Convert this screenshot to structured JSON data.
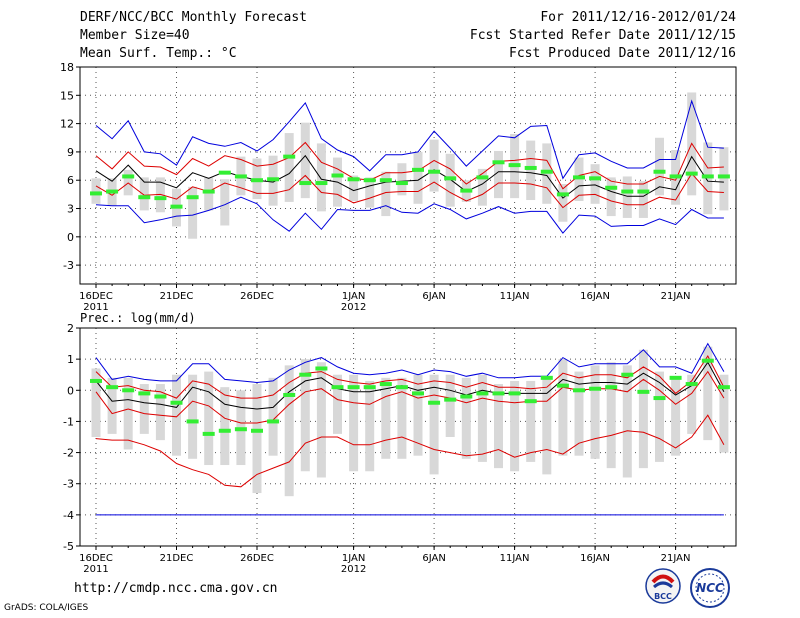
{
  "header": {
    "title": "DERF/NCC/BCC Monthly Forecast",
    "member_size": "Member Size=40",
    "variable_label": "Mean Surf. Temp.: °C",
    "forecast_period": "For 2011/12/16-2012/01/24",
    "fcst_started": "Fcst Started Refer Date 2011/12/15",
    "fcst_produced": "Fcst Produced Date 2011/12/16"
  },
  "footer": {
    "url": "http://cmdp.ncc.cma.gov.cn",
    "credit": "GrADS: COLA/IGES",
    "logo_bcc": "BCC",
    "logo_ncc": "NCC"
  },
  "colors": {
    "blue": "#0000dd",
    "red": "#dd0000",
    "black": "#000000",
    "green": "#33ee33",
    "box": "#d8d8d8",
    "grid": "#555555"
  },
  "chart_data": [
    {
      "type": "line",
      "title": "Mean Surf. Temp.: °C",
      "ylim": [
        -5,
        18
      ],
      "yticks": [
        -3,
        0,
        3,
        6,
        9,
        12,
        15,
        18
      ],
      "xtick_labels": [
        "16DEC",
        "21DEC",
        "26DEC",
        "1JAN",
        "6JAN",
        "11JAN",
        "16JAN",
        "21JAN"
      ],
      "xtick_days": [
        1,
        6,
        11,
        17,
        22,
        27,
        32,
        37
      ],
      "year_labels": [
        {
          "text": "2011",
          "day": 1
        },
        {
          "text": "2012",
          "day": 17
        }
      ],
      "days": 40,
      "series": [
        {
          "name": "max",
          "color": "blue",
          "values": [
            11.8,
            10.4,
            12.3,
            9,
            8.8,
            7.6,
            10.6,
            9.9,
            9.6,
            10,
            9.1,
            10.3,
            12.2,
            14.2,
            10.4,
            9.2,
            8.5,
            7,
            8.7,
            8.7,
            9,
            11.2,
            9.4,
            7.5,
            9.1,
            10.7,
            10.5,
            11.7,
            11.8,
            6.2,
            8.7,
            8.9,
            8,
            7.3,
            7.3,
            8.2,
            8.2,
            14.4,
            9.5,
            9.4
          ]
        },
        {
          "name": "upper",
          "color": "red",
          "values": [
            8.6,
            7.2,
            9,
            7.5,
            7.4,
            6.6,
            8.3,
            7.5,
            8.6,
            8.2,
            7.5,
            7.7,
            8.4,
            10,
            7.9,
            7.2,
            6.2,
            6,
            6.8,
            6.8,
            7,
            8.1,
            7.2,
            5.6,
            6.7,
            8,
            8.1,
            8.3,
            8.1,
            5.1,
            6.5,
            6.9,
            5.9,
            5.6,
            5.6,
            6.4,
            6,
            9.9,
            7.3,
            7.4
          ]
        },
        {
          "name": "mean",
          "color": "black",
          "values": [
            7,
            5.9,
            7.6,
            5.8,
            5.8,
            5.2,
            6.8,
            6.2,
            6.9,
            6.4,
            6,
            5.8,
            6.7,
            8.6,
            6.1,
            5.8,
            4.9,
            5.4,
            5.8,
            5.9,
            6,
            7.1,
            6.1,
            4.8,
            5.6,
            6.9,
            6.9,
            6.8,
            6.5,
            4.1,
            5.4,
            5.5,
            4.8,
            4.3,
            4.3,
            5.3,
            5,
            8.5,
            5.9,
            5.8
          ]
        },
        {
          "name": "lower",
          "color": "red",
          "values": [
            5.4,
            4.4,
            5.7,
            4.4,
            4.5,
            4,
            5.3,
            4.8,
            5.7,
            5.2,
            4.6,
            4.6,
            5,
            6.5,
            4.7,
            4.5,
            3.6,
            4.1,
            4.7,
            4.8,
            4.8,
            5.8,
            4.7,
            3.8,
            4.5,
            5.7,
            5.7,
            5.6,
            5.2,
            3.1,
            4.4,
            4.5,
            3.8,
            3.4,
            3.4,
            4.2,
            3.9,
            6.7,
            4.8,
            4.7
          ]
        },
        {
          "name": "min",
          "color": "blue",
          "values": [
            3.4,
            3.3,
            3.3,
            1.5,
            1.8,
            2.2,
            2.3,
            2.8,
            3.4,
            4.2,
            3.5,
            1.8,
            0.6,
            2.5,
            0.8,
            2.9,
            2.8,
            2.8,
            3.3,
            2.6,
            2.5,
            3.5,
            2.9,
            1.9,
            2.5,
            3.2,
            2.5,
            2.7,
            2.7,
            0.4,
            2.3,
            2.2,
            1.1,
            1.2,
            1.2,
            1.9,
            1.3,
            2.9,
            2,
            2
          ]
        }
      ],
      "boxes_low": [
        3.5,
        3.3,
        4.4,
        2.8,
        2.6,
        1.1,
        -0.2,
        2.8,
        1.2,
        4.4,
        4,
        3.3,
        3.7,
        4.1,
        2.7,
        3.2,
        3.8,
        3.1,
        2.2,
        4.4,
        3.5,
        4.8,
        3.2,
        3.7,
        3.3,
        4.1,
        4.1,
        3.9,
        3.5,
        1.6,
        3.8,
        3.5,
        2.2,
        2,
        2,
        4.4,
        3.4,
        4.4,
        2.4,
        2.8
      ],
      "boxes_high": [
        6.2,
        6.2,
        7.1,
        6.3,
        6.3,
        5.1,
        5.3,
        6.3,
        6.1,
        8.5,
        8.3,
        8.6,
        11,
        12.1,
        9.9,
        8.4,
        6.5,
        6.3,
        6.9,
        7.8,
        9,
        10.3,
        8.8,
        6,
        7.2,
        9.1,
        10.9,
        10.2,
        9.9,
        5.6,
        8.4,
        7.7,
        6.3,
        6.4,
        5.9,
        10.5,
        9.2,
        15.3,
        10,
        9.5
      ],
      "medians": [
        4.6,
        4.8,
        6.4,
        4.2,
        4.1,
        3.2,
        4.2,
        4.8,
        6.8,
        6.4,
        6,
        6.1,
        8.5,
        5.7,
        5.7,
        6.5,
        6.1,
        6,
        6,
        5.7,
        7.1,
        6.9,
        6.2,
        4.9,
        6.3,
        7.9,
        7.6,
        7.3,
        6.9,
        4.5,
        6.3,
        6.2,
        5.2,
        4.8,
        4.8,
        6.9,
        6.4,
        6.7,
        6.4,
        6.4
      ]
    },
    {
      "type": "line",
      "title": "Prec.: log(mm/d)",
      "ylim": [
        -5,
        2
      ],
      "yticks": [
        -5,
        -4,
        -3,
        -2,
        -1,
        0,
        1,
        2
      ],
      "xtick_labels": [
        "16DEC",
        "21DEC",
        "26DEC",
        "1JAN",
        "6JAN",
        "11JAN",
        "16JAN",
        "21JAN"
      ],
      "xtick_days": [
        1,
        6,
        11,
        17,
        22,
        27,
        32,
        37
      ],
      "year_labels": [
        {
          "text": "2011",
          "day": 1
        },
        {
          "text": "2012",
          "day": 17
        }
      ],
      "days": 40,
      "baseline": -4,
      "series": [
        {
          "name": "max",
          "color": "blue",
          "values": [
            1.05,
            0.35,
            0.45,
            0.35,
            0.3,
            0.3,
            0.85,
            0.85,
            0.35,
            0.3,
            0.25,
            0.3,
            0.65,
            0.9,
            1.05,
            0.75,
            0.55,
            0.5,
            0.55,
            0.65,
            0.5,
            0.65,
            0.6,
            0.45,
            0.55,
            0.4,
            0.4,
            0.45,
            0.45,
            1.05,
            0.75,
            0.85,
            0.85,
            0.85,
            1.3,
            0.75,
            0.75,
            0.55,
            1.5,
            0.6
          ]
        },
        {
          "name": "upper",
          "color": "red",
          "values": [
            0.6,
            0.1,
            0.15,
            0,
            -0.05,
            -0.25,
            0.3,
            0.2,
            -0.15,
            -0.25,
            -0.25,
            -0.15,
            0.25,
            0.55,
            0.6,
            0.35,
            0.25,
            0.2,
            0.3,
            0.35,
            0.2,
            0.3,
            0.25,
            0.1,
            0.25,
            0.1,
            0.1,
            0.05,
            0.1,
            0.55,
            0.4,
            0.5,
            0.5,
            0.4,
            0.75,
            0.45,
            -0.1,
            0.3,
            1.1,
            0.1
          ]
        },
        {
          "name": "mean",
          "color": "black",
          "values": [
            0.3,
            -0.35,
            -0.3,
            -0.4,
            -0.45,
            -0.55,
            0.1,
            -0.05,
            -0.45,
            -0.55,
            -0.6,
            -0.55,
            -0.05,
            0.3,
            0.4,
            0.05,
            -0.05,
            -0.05,
            0.05,
            0.15,
            0,
            0.1,
            0,
            -0.15,
            0,
            -0.1,
            -0.1,
            -0.1,
            -0.1,
            0.35,
            0.2,
            0.25,
            0.25,
            0.2,
            0.55,
            0.25,
            -0.15,
            0.15,
            0.9,
            -0.05
          ]
        },
        {
          "name": "lower",
          "color": "red",
          "values": [
            -0.05,
            -0.75,
            -0.6,
            -0.75,
            -0.8,
            -0.85,
            -0.35,
            -0.5,
            -0.9,
            -1.05,
            -1.05,
            -0.95,
            -0.45,
            -0.05,
            0.05,
            -0.3,
            -0.4,
            -0.45,
            -0.2,
            -0.05,
            -0.25,
            -0.15,
            -0.25,
            -0.4,
            -0.25,
            -0.35,
            -0.4,
            -0.35,
            -0.35,
            0.1,
            0,
            0.05,
            0.05,
            -0.05,
            0.35,
            0,
            -0.45,
            -0.1,
            0.6,
            -0.25
          ]
        },
        {
          "name": "p_low",
          "color": "red",
          "values": [
            -1.55,
            -1.6,
            -1.6,
            -1.75,
            -1.95,
            -2.35,
            -2.55,
            -2.7,
            -3.05,
            -3.1,
            -2.7,
            -2.5,
            -2.3,
            -1.7,
            -1.5,
            -1.5,
            -1.75,
            -1.75,
            -1.6,
            -1.5,
            -1.7,
            -1.9,
            -2,
            -2.1,
            -2.05,
            -1.9,
            -2.15,
            -2,
            -1.9,
            -2.05,
            -1.7,
            -1.55,
            -1.45,
            -1.3,
            -1.35,
            -1.55,
            -1.85,
            -1.5,
            -0.8,
            -1.75
          ]
        },
        {
          "name": "floor",
          "color": "blue",
          "values": [
            -4,
            -4,
            -4,
            -4,
            -4,
            -4,
            -4,
            -4,
            -4,
            -4,
            -4,
            -4,
            -4,
            -4,
            -4,
            -4,
            -4,
            -4,
            -4,
            -4,
            -4,
            -4,
            -4,
            -4,
            -4,
            -4,
            -4,
            -4,
            -4,
            -4,
            -4,
            -4,
            -4,
            -4,
            -4,
            -4,
            -4,
            -4,
            -4,
            -4
          ]
        }
      ],
      "boxes_low": [
        -1.5,
        -1.4,
        -1.9,
        -1.4,
        -1.6,
        -2.1,
        -2.2,
        -2.4,
        -2.4,
        -2.4,
        -3.3,
        -2.1,
        -3.4,
        -2.6,
        -2.8,
        -1.4,
        -2.6,
        -2.6,
        -2.2,
        -2.2,
        -2.1,
        -2.7,
        -1.5,
        -2.2,
        -2.3,
        -2.5,
        -2.6,
        -2.3,
        -2.7,
        -2.1,
        -2.1,
        -2.2,
        -2.5,
        -2.8,
        -2.5,
        -2.3,
        -2.1,
        -1.4,
        -1.6,
        -2.0
      ],
      "boxes_high": [
        0.7,
        0.4,
        0.4,
        0.2,
        0.2,
        0.5,
        0.5,
        0.6,
        0.1,
        0.0,
        0.2,
        0.4,
        0.8,
        1.0,
        0.9,
        0.5,
        0.5,
        0.3,
        0.4,
        0.4,
        0.5,
        0.5,
        0.5,
        0.4,
        0.5,
        0.2,
        0.3,
        0.3,
        0.4,
        1.0,
        0.6,
        0.8,
        0.9,
        0.8,
        1.3,
        0.6,
        0.4,
        0.5,
        1.4,
        0.5
      ],
      "medians": [
        0.3,
        0.1,
        0.0,
        -0.1,
        -0.2,
        -0.4,
        -1.0,
        -1.4,
        -1.3,
        -1.25,
        -1.3,
        -1.0,
        -0.15,
        0.5,
        0.7,
        0.1,
        0.1,
        0.1,
        0.2,
        0.1,
        -0.1,
        -0.4,
        -0.3,
        -0.2,
        -0.1,
        -0.1,
        -0.1,
        -0.35,
        0.4,
        0.15,
        0.0,
        0.05,
        0.1,
        0.5,
        -0.05,
        -0.25,
        0.4,
        0.2,
        0.95,
        0.1
      ]
    }
  ]
}
